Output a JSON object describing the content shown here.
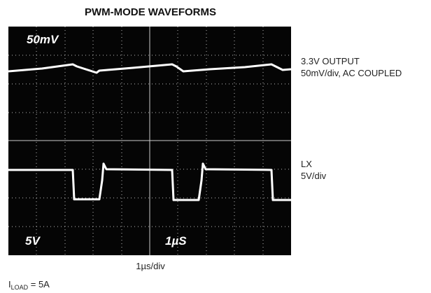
{
  "header": {
    "title": "PWM-MODE WAVEFORMS"
  },
  "screen": {
    "top_scale": "50mV",
    "bottom_scale": "5V",
    "time_scale": "1µS"
  },
  "traces": [
    {
      "label": "3.3V OUTPUT",
      "detail": "50mV/div, AC COUPLED"
    },
    {
      "label": "LX",
      "detail": "5V/div"
    }
  ],
  "x_label": "1µs/div",
  "condition": {
    "symbol": "I",
    "subscript": "LOAD",
    "text": " = 5A"
  }
}
